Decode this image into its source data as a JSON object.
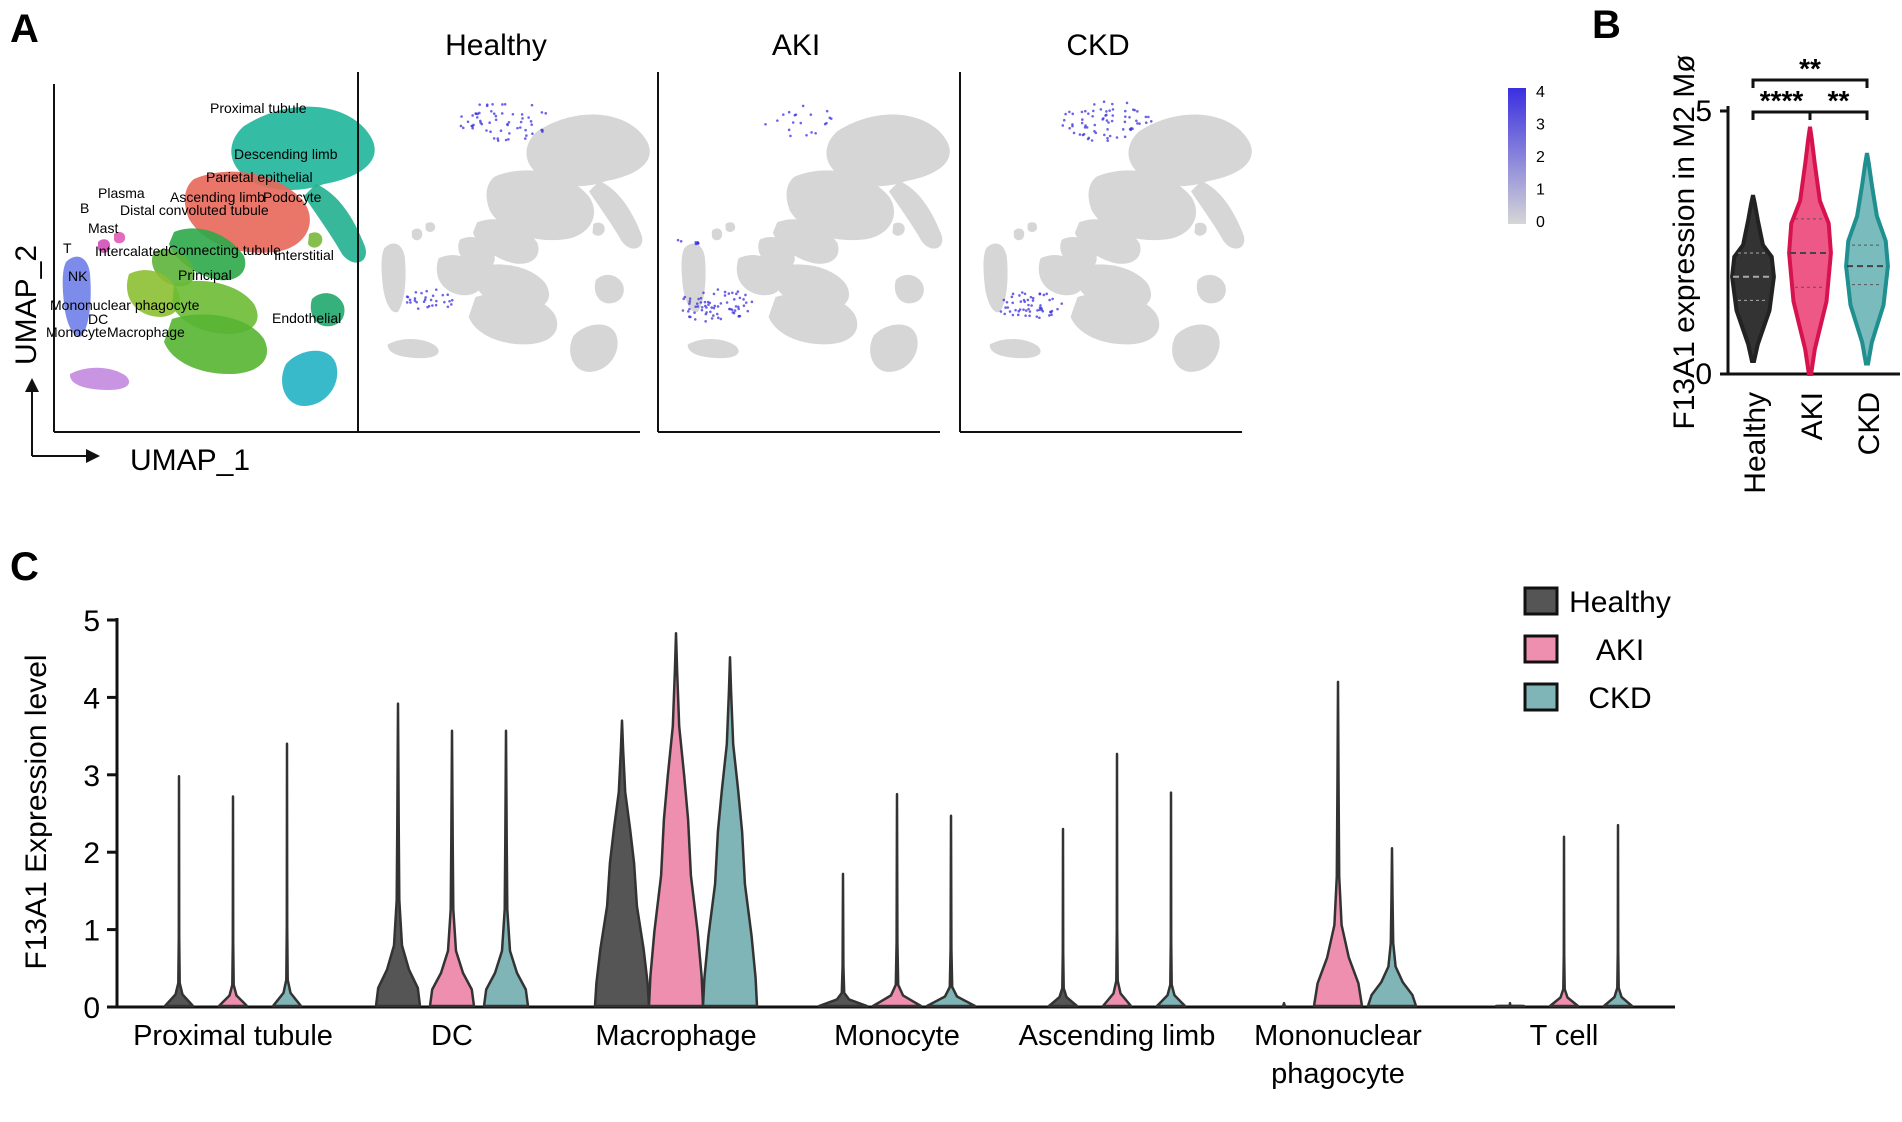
{
  "panel_labels": {
    "a": "A",
    "b": "B",
    "c": "C"
  },
  "colors": {
    "healthy": "#555555",
    "aki": "#ee8fb0",
    "aki_strong": "#e8205f",
    "ckd": "#7fb5b7",
    "ckd_strong": "#1f8f8f",
    "expr_high": "#3a2fe0",
    "expr_low": "#d6d6d6"
  },
  "panel_a": {
    "axes": {
      "x": "UMAP_1",
      "y": "UMAP_2"
    },
    "cluster_labels": [
      {
        "text": "Proximal tubule",
        "color": "#1fb59a"
      },
      {
        "text": "Descending limb",
        "color": "#1fb59a"
      },
      {
        "text": "Parietal epithelial",
        "color": "#e8675a"
      },
      {
        "text": "Plasma",
        "color": "#e05ab5"
      },
      {
        "text": "Ascending limb",
        "color": "#3fae3f"
      },
      {
        "text": "Podocyte",
        "color": "#7ab83a"
      },
      {
        "text": "B",
        "color": "#d24fb8"
      },
      {
        "text": "Distal convoluted tubule",
        "color": "#58b43c"
      },
      {
        "text": "Mast",
        "color": "#8f7be6"
      },
      {
        "text": "T",
        "color": "#6f7fe8"
      },
      {
        "text": "Intercalated",
        "color": "#8cbf32"
      },
      {
        "text": "Connecting tubule",
        "color": "#6cbb34"
      },
      {
        "text": "Interstitial",
        "color": "#21a96e"
      },
      {
        "text": "NK",
        "color": "#5f86e3"
      },
      {
        "text": "Principal",
        "color": "#56b532"
      },
      {
        "text": "Mononuclear phagocyte",
        "color": "#c38ae0"
      },
      {
        "text": "DC",
        "color": "#b07ee6"
      },
      {
        "text": "Endothelial",
        "color": "#22b3c4"
      },
      {
        "text": "Monocyte",
        "color": "#e39ad2"
      },
      {
        "text": "Macrophage",
        "color": "#8f8de6"
      }
    ],
    "feature_plots": [
      {
        "title": "Healthy"
      },
      {
        "title": "AKI"
      },
      {
        "title": "CKD"
      }
    ],
    "colorbar": {
      "ticks": [
        "4",
        "3",
        "2",
        "1",
        "0"
      ]
    }
  },
  "chart_data": [
    {
      "type": "violin",
      "panel": "B",
      "title": "",
      "ylabel": "F13A1 expression in M2 Mø",
      "xlabel": "",
      "categories": [
        "Healthy",
        "AKI",
        "CKD"
      ],
      "ylim": [
        0,
        5
      ],
      "yticks": [
        0,
        5
      ],
      "series": [
        {
          "name": "Healthy",
          "min": 0.25,
          "max": 3.4,
          "median": 1.85,
          "q1": 1.4,
          "q3": 2.3
        },
        {
          "name": "AKI",
          "min": 0.0,
          "max": 4.7,
          "median": 2.3,
          "q1": 1.65,
          "q3": 2.95
        },
        {
          "name": "CKD",
          "min": 0.2,
          "max": 4.2,
          "median": 2.05,
          "q1": 1.7,
          "q3": 2.45
        }
      ],
      "significance": [
        {
          "pair": [
            "Healthy",
            "AKI"
          ],
          "label": "****"
        },
        {
          "pair": [
            "AKI",
            "CKD"
          ],
          "label": "**"
        },
        {
          "pair": [
            "Healthy",
            "CKD"
          ],
          "label": "**"
        }
      ]
    },
    {
      "type": "violin",
      "panel": "C",
      "title": "",
      "ylabel": "F13A1 Expression level",
      "xlabel": "",
      "ylim": [
        0,
        5
      ],
      "yticks": [
        0,
        1,
        2,
        3,
        4,
        5
      ],
      "legend": {
        "position": "top-right",
        "entries": [
          "Healthy",
          "AKI",
          "CKD"
        ]
      },
      "categories": [
        "Proximal tubule",
        "DC",
        "Macrophage",
        "Monocyte",
        "Ascending limb",
        "Mononuclear phagocyte",
        "T cell"
      ],
      "category_lines": [
        [
          "Proximal tubule"
        ],
        [
          "DC"
        ],
        [
          "Macrophage"
        ],
        [
          "Monocyte"
        ],
        [
          "Ascending limb"
        ],
        [
          "Mononuclear",
          "phagocyte"
        ],
        [
          "T cell"
        ]
      ],
      "series": [
        {
          "name": "Healthy",
          "max": [
            2.98,
            3.92,
            3.7,
            1.72,
            2.3,
            0.05,
            0.05
          ]
        },
        {
          "name": "AKI",
          "max": [
            2.72,
            3.57,
            4.83,
            2.75,
            3.27,
            4.2,
            2.2
          ]
        },
        {
          "name": "CKD",
          "max": [
            3.4,
            3.57,
            4.52,
            2.47,
            2.77,
            2.05,
            2.35
          ]
        }
      ]
    }
  ]
}
